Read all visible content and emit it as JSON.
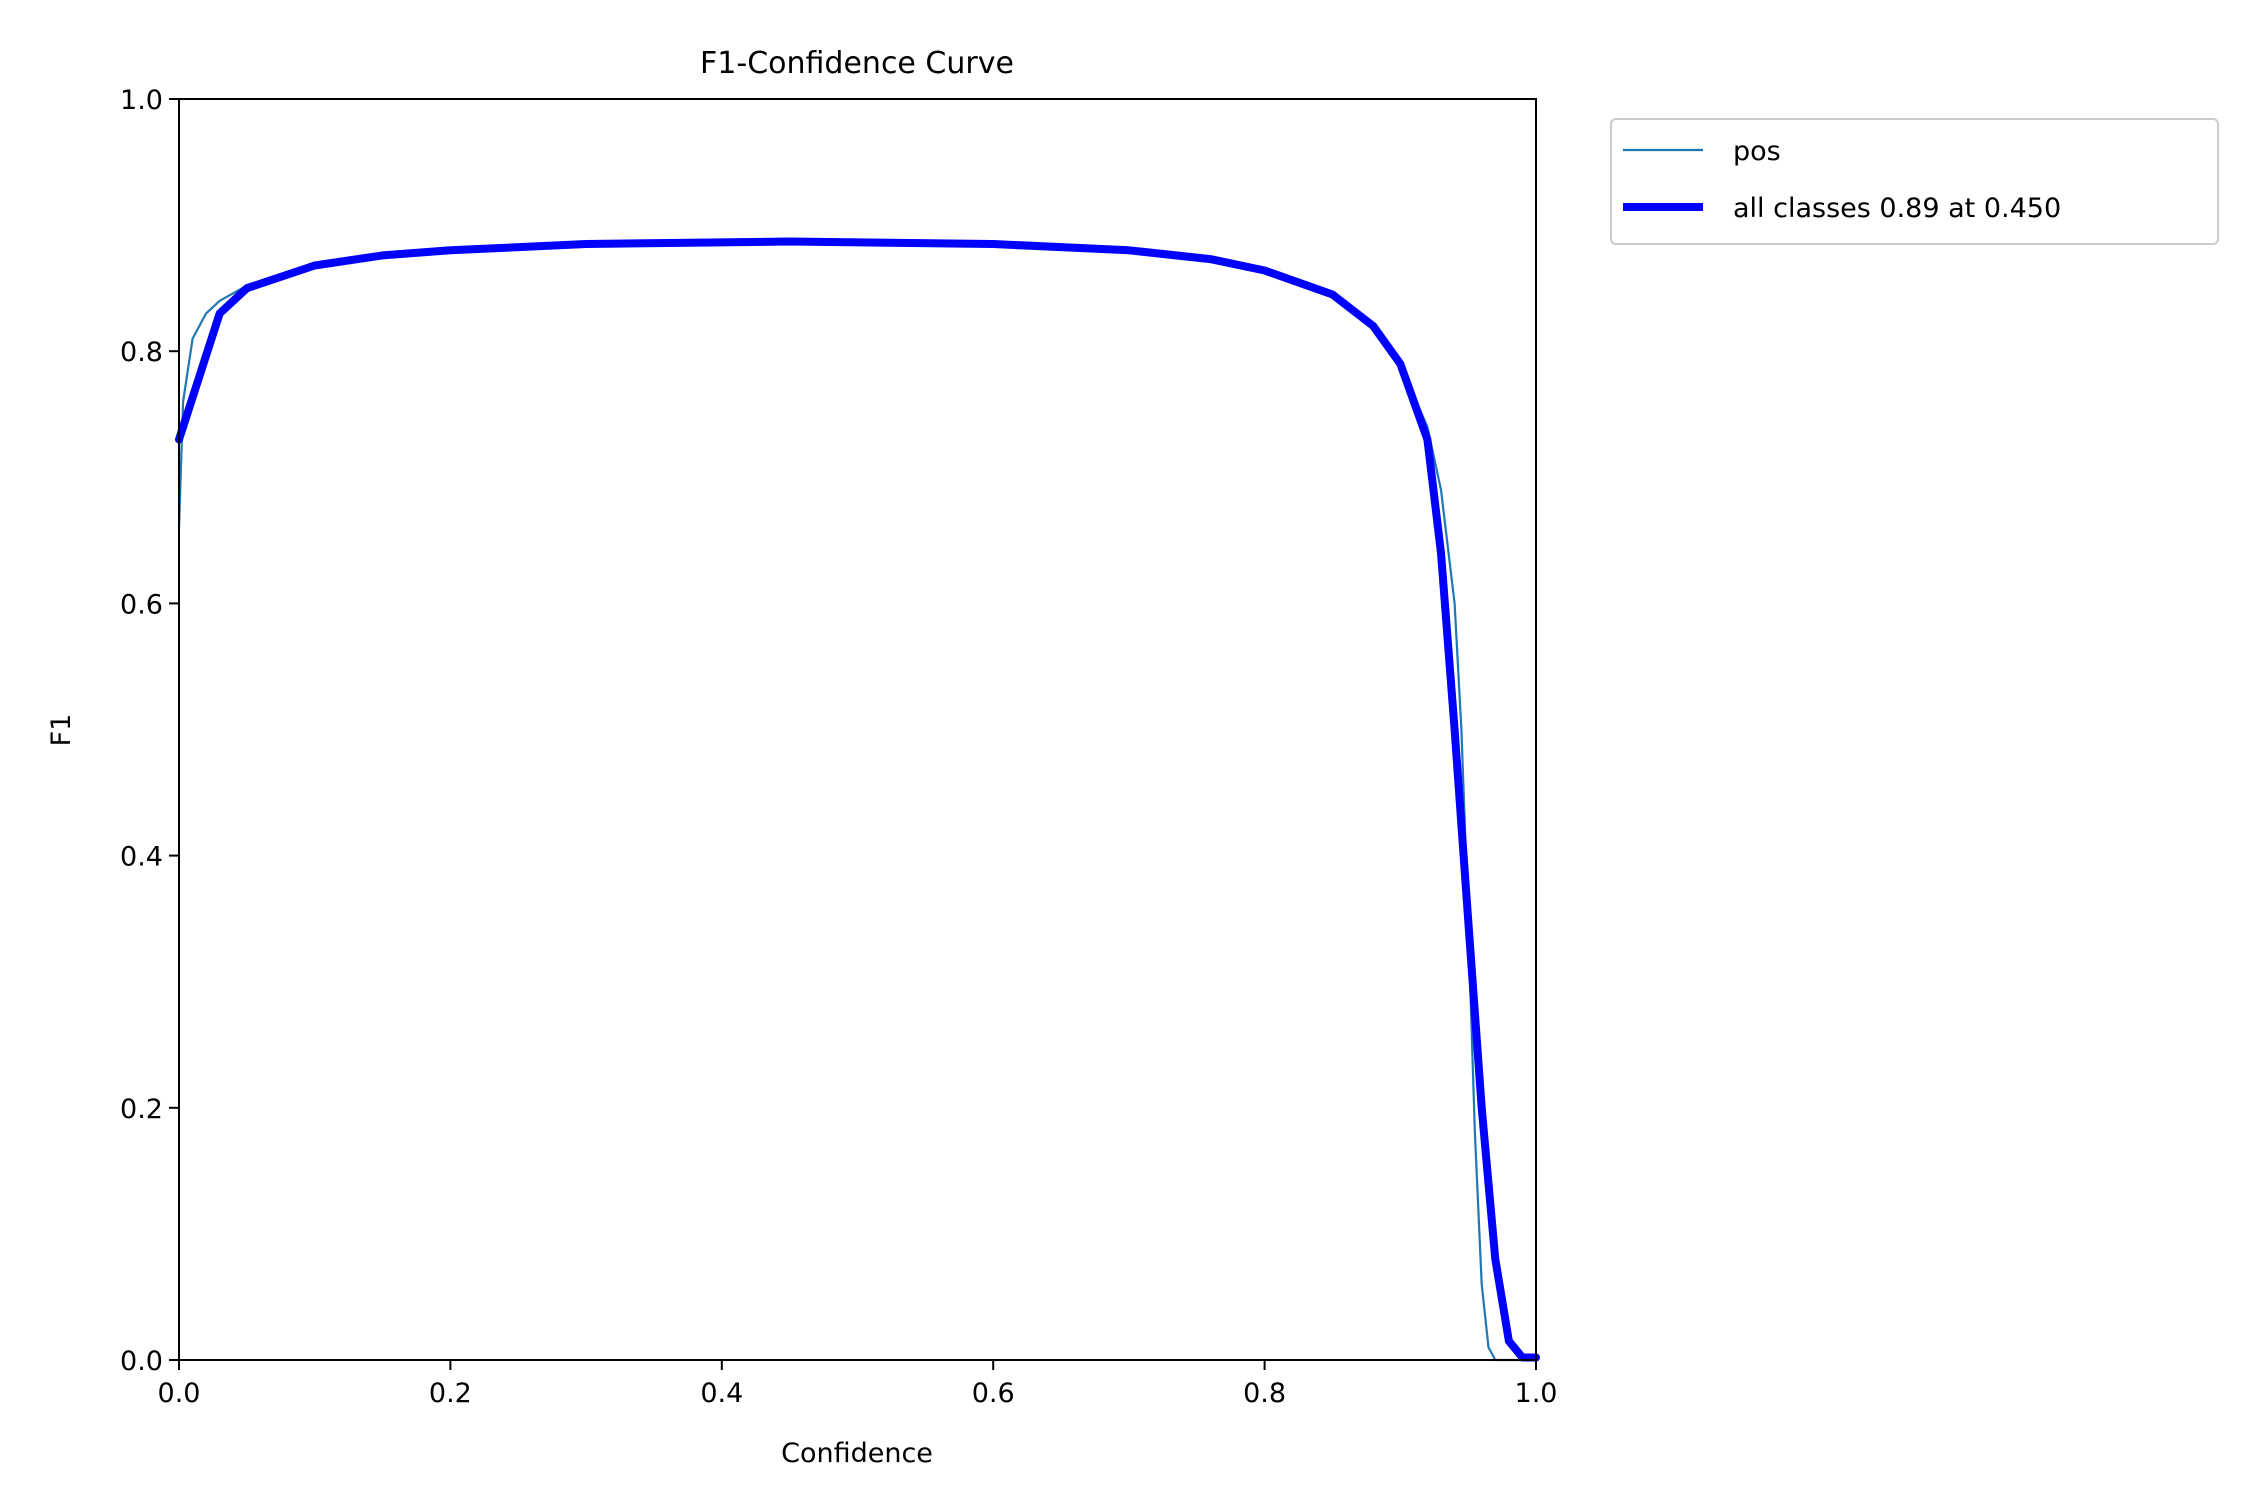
{
  "chart_data": {
    "type": "line",
    "title": "F1-Confidence Curve",
    "xlabel": "Confidence",
    "ylabel": "F1",
    "xlim": [
      0,
      1
    ],
    "ylim": [
      0,
      1
    ],
    "xticks": [
      "0.0",
      "0.2",
      "0.4",
      "0.6",
      "0.8",
      "1.0"
    ],
    "yticks": [
      "0.0",
      "0.2",
      "0.4",
      "0.6",
      "0.8",
      "1.0"
    ],
    "grid": false,
    "legend_position": "outside-top-right",
    "series": [
      {
        "name": "pos",
        "color": "#1f77b4",
        "x": [
          0,
          0.003,
          0.01,
          0.02,
          0.03,
          0.05,
          0.1,
          0.15,
          0.2,
          0.3,
          0.45,
          0.6,
          0.7,
          0.76,
          0.8,
          0.85,
          0.88,
          0.9,
          0.92,
          0.93,
          0.94,
          0.945,
          0.95,
          0.955,
          0.96,
          0.965,
          0.97,
          1.0
        ],
        "y": [
          0.66,
          0.76,
          0.81,
          0.83,
          0.84,
          0.852,
          0.868,
          0.876,
          0.88,
          0.885,
          0.887,
          0.885,
          0.88,
          0.873,
          0.864,
          0.845,
          0.82,
          0.79,
          0.74,
          0.69,
          0.6,
          0.5,
          0.35,
          0.18,
          0.06,
          0.01,
          0.0,
          0.0
        ]
      },
      {
        "name": "all classes 0.89 at 0.450",
        "color": "#0000ff",
        "x": [
          0,
          0.03,
          0.05,
          0.1,
          0.15,
          0.2,
          0.3,
          0.45,
          0.6,
          0.7,
          0.76,
          0.8,
          0.85,
          0.88,
          0.9,
          0.92,
          0.93,
          0.94,
          0.95,
          0.96,
          0.97,
          0.98,
          0.99,
          1.0
        ],
        "y": [
          0.73,
          0.83,
          0.85,
          0.868,
          0.876,
          0.88,
          0.885,
          0.887,
          0.885,
          0.88,
          0.873,
          0.864,
          0.845,
          0.82,
          0.79,
          0.73,
          0.64,
          0.5,
          0.35,
          0.2,
          0.08,
          0.015,
          0.002,
          0.002
        ]
      }
    ]
  }
}
